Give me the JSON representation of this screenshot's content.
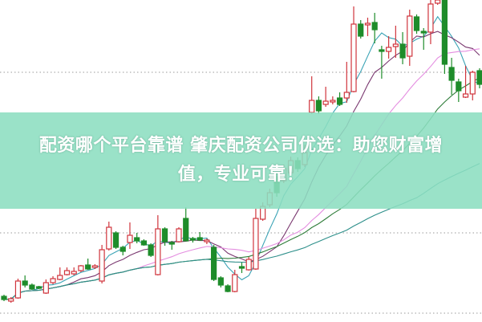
{
  "banner": {
    "line1": "配资哪个平台靠谱 肇庆配资公司优选：助您财富增",
    "line2": "值，专业可靠！"
  },
  "colors": {
    "up": "#d0343c",
    "down": "#1e8c2a",
    "banner": "#8cdec0",
    "grid": "#999999",
    "ma": [
      "#3aa3b5",
      "#7a3870",
      "#e48de0",
      "#2f7d3a",
      "#2d8f8a"
    ]
  },
  "chart_data": {
    "type": "candlestick",
    "grid": "dotted horizontal",
    "gridlines": [
      10,
      110,
      310
    ],
    "ylim": [
      0,
      400
    ],
    "ma_windows": [
      5,
      10,
      20,
      30,
      60
    ],
    "ohlc": [
      [
        31,
        33,
        25,
        27
      ],
      [
        25,
        30,
        23,
        28
      ],
      [
        29,
        53,
        28,
        50
      ],
      [
        50,
        57,
        42,
        45
      ],
      [
        45,
        47,
        39,
        40
      ],
      [
        43,
        44,
        40,
        41
      ],
      [
        35,
        52,
        34,
        48
      ],
      [
        48,
        56,
        46,
        53
      ],
      [
        52,
        67,
        51,
        57
      ],
      [
        58,
        67,
        57,
        63
      ],
      [
        59,
        67,
        57,
        62
      ],
      [
        63,
        70,
        61,
        69
      ],
      [
        70,
        78,
        64,
        65
      ],
      [
        67,
        71,
        65,
        69
      ],
      [
        50,
        95,
        47,
        89
      ],
      [
        90,
        124,
        88,
        117
      ],
      [
        110,
        112,
        90,
        92
      ],
      [
        92,
        94,
        82,
        87
      ],
      [
        98,
        123,
        90,
        107
      ],
      [
        104,
        110,
        97,
        100
      ],
      [
        100,
        102,
        94,
        95
      ],
      [
        95,
        97,
        80,
        82
      ],
      [
        58,
        132,
        57,
        115
      ],
      [
        115,
        117,
        94,
        99
      ],
      [
        98,
        100,
        89,
        96
      ],
      [
        99,
        117,
        98,
        115
      ],
      [
        128,
        142,
        100,
        100
      ],
      [
        103,
        105,
        98,
        101
      ],
      [
        104,
        111,
        100,
        101
      ],
      [
        99,
        103,
        96,
        101
      ],
      [
        92,
        95,
        50,
        52
      ],
      [
        54,
        56,
        42,
        45
      ],
      [
        44,
        46,
        36,
        37
      ],
      [
        37,
        64,
        36,
        58
      ],
      [
        68,
        73,
        60,
        66
      ],
      [
        64,
        80,
        63,
        77
      ],
      [
        65,
        140,
        64,
        128
      ],
      [
        127,
        148,
        125,
        143
      ],
      [
        145,
        165,
        142,
        160
      ],
      [
        180,
        185,
        155,
        160
      ],
      [
        175,
        195,
        172,
        190
      ],
      [
        185,
        205,
        182,
        200
      ],
      [
        200,
        204,
        186,
        190
      ],
      [
        195,
        220,
        192,
        210
      ],
      [
        260,
        305,
        258,
        275
      ],
      [
        275,
        280,
        258,
        262
      ],
      [
        270,
        292,
        267,
        274
      ],
      [
        273,
        280,
        270,
        275
      ],
      [
        278,
        285,
        268,
        270
      ],
      [
        278,
        323,
        272,
        285
      ],
      [
        286,
        392,
        285,
        370
      ],
      [
        370,
        375,
        352,
        355
      ],
      [
        369,
        378,
        355,
        371
      ],
      [
        372,
        384,
        346,
        363
      ],
      [
        338,
        343,
        302,
        336
      ],
      [
        336,
        355,
        327,
        341
      ],
      [
        342,
        368,
        328,
        345
      ],
      [
        345,
        360,
        320,
        328
      ],
      [
        330,
        388,
        318,
        380
      ],
      [
        379,
        382,
        358,
        362
      ],
      [
        361,
        365,
        338,
        359
      ],
      [
        360,
        400,
        345,
        395
      ],
      [
        396,
        400,
        394,
        400
      ],
      [
        400,
        400,
        308,
        320
      ],
      [
        316,
        328,
        282,
        300
      ],
      [
        298,
        302,
        273,
        287
      ],
      [
        279,
        318,
        278,
        283
      ],
      [
        283,
        312,
        275,
        310
      ],
      [
        312,
        315,
        290,
        295
      ]
    ]
  }
}
